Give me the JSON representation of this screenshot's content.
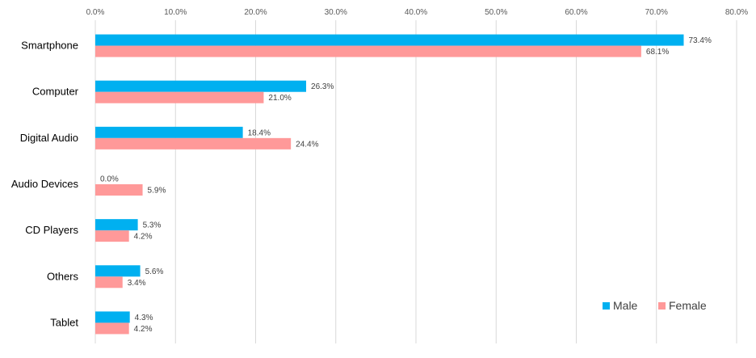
{
  "chart_data": {
    "type": "bar",
    "orientation": "horizontal",
    "categories": [
      "Smartphone",
      "Computer",
      "Digital Audio",
      "Audio Devices",
      "CD Players",
      "Others",
      "Tablet"
    ],
    "series": [
      {
        "name": "Male",
        "color": "#00b0f0",
        "values": [
          73.4,
          26.3,
          18.4,
          0.0,
          5.3,
          5.6,
          4.3
        ]
      },
      {
        "name": "Female",
        "color": "#ff9999",
        "values": [
          68.1,
          21.0,
          24.4,
          5.9,
          4.2,
          3.4,
          4.2
        ]
      }
    ],
    "xlim": [
      0,
      80
    ],
    "xticks": [
      "0.0%",
      "10.0%",
      "20.0%",
      "30.0%",
      "40.0%",
      "50.0%",
      "60.0%",
      "70.0%",
      "80.0%"
    ],
    "tick_values": [
      0,
      10,
      20,
      30,
      40,
      50,
      60,
      70,
      80
    ],
    "x_axis_position": "top",
    "value_format": "percent-1-decimal",
    "grid": true,
    "legend_position": "bottom-right",
    "title": "",
    "xlabel": "",
    "ylabel": ""
  }
}
